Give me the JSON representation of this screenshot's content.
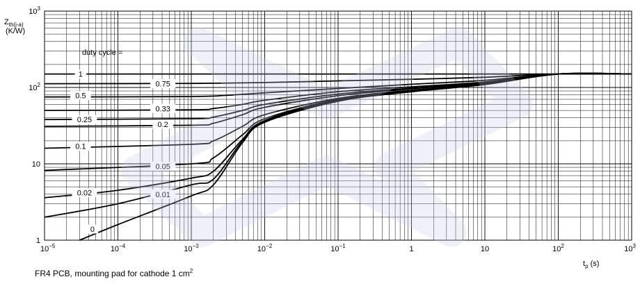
{
  "chart_data": {
    "type": "line",
    "title": "",
    "xlabel": "t_p (s)",
    "ylabel": "Z_th(j-a) (K/W)",
    "xscale": "log",
    "yscale": "log",
    "xlim": [
      1e-05,
      1000
    ],
    "ylim": [
      1,
      1000
    ],
    "grid": true,
    "x_ticks": [
      "10^-5",
      "10^-4",
      "10^-3",
      "10^-2",
      "10^-1",
      "1",
      "10",
      "10^2",
      "10^3"
    ],
    "y_ticks": [
      "1",
      "10",
      "10^2",
      "10^3"
    ],
    "legend_title": "duty cycle =",
    "series": [
      {
        "name": "1",
        "points": [
          [
            1e-05,
            150
          ],
          [
            0.01,
            150
          ],
          [
            1,
            150
          ],
          [
            100,
            150
          ],
          [
            1000,
            150
          ]
        ]
      },
      {
        "name": "0.75",
        "points": [
          [
            1e-05,
            112
          ],
          [
            0.001,
            113
          ],
          [
            0.01,
            116
          ],
          [
            0.1,
            122
          ],
          [
            1,
            128
          ],
          [
            10,
            136
          ],
          [
            100,
            150
          ],
          [
            1000,
            150
          ]
        ]
      },
      {
        "name": "0.5",
        "points": [
          [
            1e-05,
            75
          ],
          [
            0.001,
            76
          ],
          [
            0.003,
            79
          ],
          [
            0.01,
            85
          ],
          [
            0.1,
            97
          ],
          [
            1,
            110
          ],
          [
            10,
            124
          ],
          [
            100,
            150
          ],
          [
            1000,
            150
          ]
        ]
      },
      {
        "name": "0.33",
        "points": [
          [
            1e-05,
            50
          ],
          [
            0.001,
            51
          ],
          [
            0.002,
            53
          ],
          [
            0.005,
            60
          ],
          [
            0.01,
            68
          ],
          [
            0.1,
            88
          ],
          [
            1,
            102
          ],
          [
            10,
            118
          ],
          [
            100,
            150
          ],
          [
            1000,
            150
          ]
        ]
      },
      {
        "name": "0.25",
        "points": [
          [
            1e-05,
            38
          ],
          [
            0.001,
            39
          ],
          [
            0.002,
            41
          ],
          [
            0.005,
            50
          ],
          [
            0.01,
            60
          ],
          [
            0.1,
            82
          ],
          [
            1,
            98
          ],
          [
            10,
            116
          ],
          [
            100,
            150
          ],
          [
            1000,
            150
          ]
        ]
      },
      {
        "name": "0.2",
        "points": [
          [
            1e-05,
            31
          ],
          [
            0.001,
            32
          ],
          [
            0.002,
            34
          ],
          [
            0.005,
            44
          ],
          [
            0.01,
            55
          ],
          [
            0.1,
            78
          ],
          [
            1,
            96
          ],
          [
            10,
            115
          ],
          [
            100,
            150
          ],
          [
            1000,
            150
          ]
        ]
      },
      {
        "name": "0.1",
        "points": [
          [
            1e-05,
            16
          ],
          [
            0.001,
            18
          ],
          [
            0.002,
            20
          ],
          [
            0.005,
            31
          ],
          [
            0.01,
            44
          ],
          [
            0.1,
            72
          ],
          [
            1,
            92
          ],
          [
            10,
            112
          ],
          [
            100,
            150
          ],
          [
            1000,
            150
          ]
        ]
      },
      {
        "name": "0.05",
        "points": [
          [
            1e-05,
            8.2
          ],
          [
            0.001,
            10
          ],
          [
            0.002,
            12
          ],
          [
            0.005,
            24
          ],
          [
            0.01,
            39
          ],
          [
            0.1,
            70
          ],
          [
            1,
            90
          ],
          [
            10,
            111
          ],
          [
            100,
            150
          ],
          [
            1000,
            150
          ]
        ]
      },
      {
        "name": "0.02",
        "points": [
          [
            1e-05,
            3.6
          ],
          [
            0.0001,
            4.5
          ],
          [
            0.001,
            6.5
          ],
          [
            0.002,
            8
          ],
          [
            0.005,
            21
          ],
          [
            0.01,
            37
          ],
          [
            0.1,
            68
          ],
          [
            1,
            89
          ],
          [
            10,
            110
          ],
          [
            100,
            150
          ],
          [
            1000,
            150
          ]
        ]
      },
      {
        "name": "0.01",
        "points": [
          [
            1e-05,
            2.0
          ],
          [
            0.0001,
            3.0
          ],
          [
            0.001,
            5.3
          ],
          [
            0.002,
            6.3
          ],
          [
            0.005,
            20
          ],
          [
            0.01,
            36
          ],
          [
            0.1,
            67
          ],
          [
            1,
            88
          ],
          [
            10,
            110
          ],
          [
            100,
            150
          ],
          [
            1000,
            150
          ]
        ]
      },
      {
        "name": "0",
        "points": [
          [
            3e-05,
            1.0
          ],
          [
            0.0001,
            1.6
          ],
          [
            0.001,
            3.8
          ],
          [
            0.002,
            5.3
          ],
          [
            0.005,
            19
          ],
          [
            0.01,
            35
          ],
          [
            0.1,
            66
          ],
          [
            1,
            88
          ],
          [
            10,
            109
          ],
          [
            100,
            150
          ],
          [
            1000,
            150
          ]
        ]
      }
    ],
    "curve_labels": [
      {
        "series": "1",
        "x": 3.1e-05,
        "y": 150
      },
      {
        "series": "0.75",
        "x": 0.00041,
        "y": 112
      },
      {
        "series": "0.5",
        "x": 3.1e-05,
        "y": 79
      },
      {
        "series": "0.33",
        "x": 0.00041,
        "y": 53
      },
      {
        "series": "0.25",
        "x": 3.5e-05,
        "y": 38
      },
      {
        "series": "0.2",
        "x": 0.00041,
        "y": 33
      },
      {
        "series": "0.1",
        "x": 3.1e-05,
        "y": 17
      },
      {
        "series": "0.05",
        "x": 0.00041,
        "y": 9.3
      },
      {
        "series": "0.02",
        "x": 3.5e-05,
        "y": 4.2
      },
      {
        "series": "0.01",
        "x": 0.00041,
        "y": 4.0
      },
      {
        "series": "0",
        "x": 4.5e-05,
        "y": 1.4
      }
    ]
  },
  "footnote": "FR4 PCB, mounting pad for cathode 1 cm",
  "footnote_sup": "2"
}
